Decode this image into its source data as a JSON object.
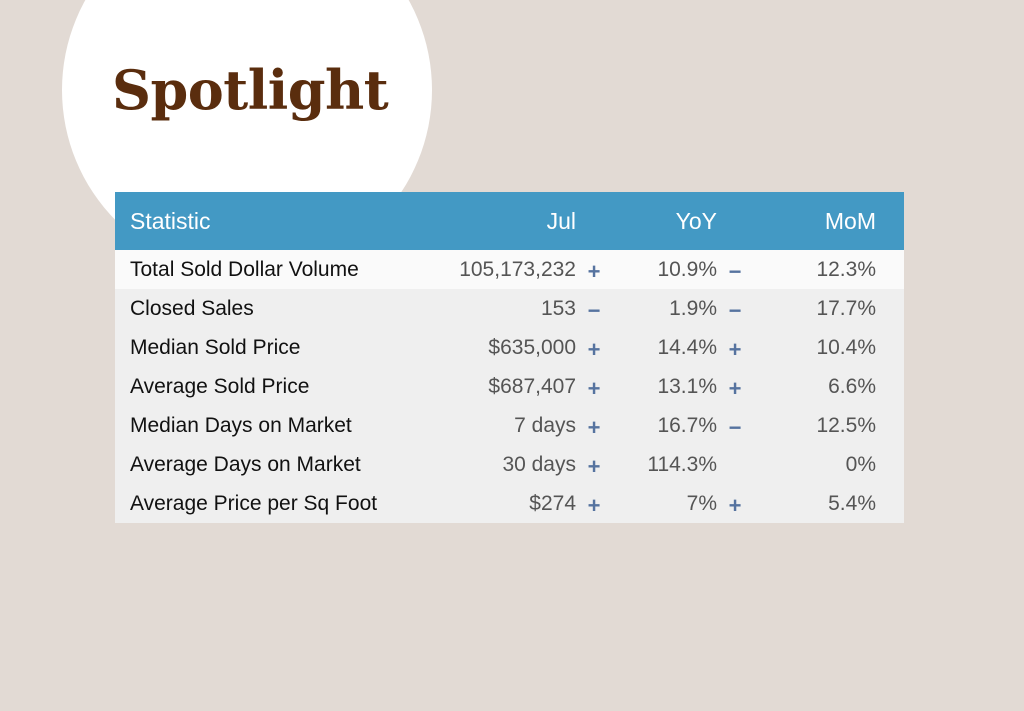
{
  "title": "Spotlight",
  "table": {
    "headers": {
      "statistic": "Statistic",
      "jul": "Jul",
      "yoy": "YoY",
      "mom": "MoM"
    },
    "rows": [
      {
        "statistic": "Total Sold Dollar Volume",
        "jul": "105,173,232",
        "yoy_sign": "+",
        "yoy": "10.9%",
        "mom_sign": "−",
        "mom": "12.3%"
      },
      {
        "statistic": "Closed Sales",
        "jul": "153",
        "yoy_sign": "−",
        "yoy": "1.9%",
        "mom_sign": "−",
        "mom": "17.7%"
      },
      {
        "statistic": "Median Sold Price",
        "jul": "$635,000",
        "yoy_sign": "+",
        "yoy": "14.4%",
        "mom_sign": "+",
        "mom": "10.4%"
      },
      {
        "statistic": "Average Sold Price",
        "jul": "$687,407",
        "yoy_sign": "+",
        "yoy": "13.1%",
        "mom_sign": "+",
        "mom": "6.6%"
      },
      {
        "statistic": "Median Days on Market",
        "jul": "7 days",
        "yoy_sign": "+",
        "yoy": "16.7%",
        "mom_sign": "−",
        "mom": "12.5%"
      },
      {
        "statistic": "Average Days on Market",
        "jul": "30 days",
        "yoy_sign": "+",
        "yoy": "114.3%",
        "mom_sign": "",
        "mom": "0%"
      },
      {
        "statistic": "Average Price per Sq Foot",
        "jul": "$274",
        "yoy_sign": "+",
        "yoy": "7%",
        "mom_sign": "+",
        "mom": "5.4%"
      }
    ]
  },
  "colors": {
    "background": "#e2dad4",
    "header": "#4399c4",
    "title": "#5a2d0e",
    "indicator": "#56739f"
  }
}
